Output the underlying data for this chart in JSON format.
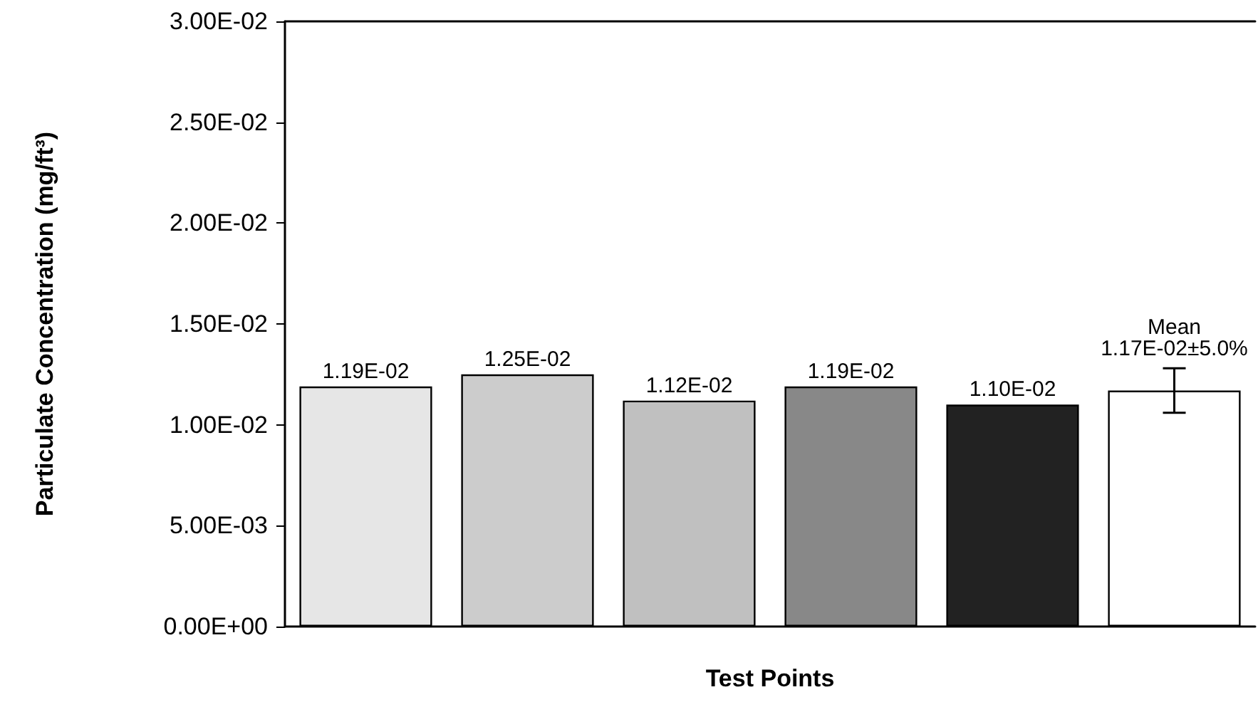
{
  "chart_data": {
    "type": "bar",
    "xlabel": "Test Points",
    "ylabel": "Particulate Concentration (mg/ft³)",
    "categories": [
      null,
      null,
      null,
      null,
      null,
      null
    ],
    "values": [
      0.0119,
      0.0125,
      0.0112,
      0.0119,
      0.011,
      0.0117
    ],
    "colors": [
      "#e6e6e6",
      "#cccccc",
      "#c0c0c0",
      "#888888",
      "#222222",
      "#ffffff"
    ],
    "errors": [
      null,
      null,
      null,
      null,
      null,
      0.0011
    ],
    "value_labels": [
      "1.19E-02",
      "1.25E-02",
      "1.12E-02",
      "1.19E-02",
      "1.10E-02",
      null
    ],
    "annotations": [
      {
        "text": "Mean\n1.17E-02±5.0%",
        "y": 0.0117
      }
    ],
    "ylim": [
      0,
      0.03
    ],
    "yticks": [
      {
        "value": 0,
        "label": "0.00E+00"
      },
      {
        "value": 0.005,
        "label": "5.00E-03"
      },
      {
        "value": 0.01,
        "label": "1.00E-02"
      },
      {
        "value": 0.015,
        "label": "1.50E-02"
      },
      {
        "value": 0.02,
        "label": "2.00E-02"
      },
      {
        "value": 0.025,
        "label": "2.50E-02"
      },
      {
        "value": 0.03,
        "label": "3.00E-02"
      }
    ],
    "grid": false
  }
}
